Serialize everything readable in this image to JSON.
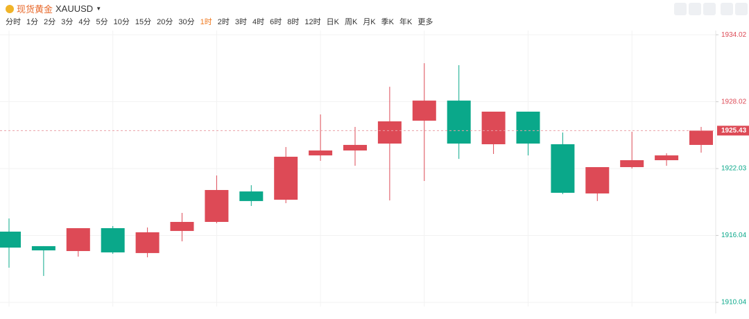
{
  "header": {
    "symbol_name": "现货黄金",
    "symbol_code": "XAUUSD",
    "intervals": [
      "分时",
      "1分",
      "2分",
      "3分",
      "4分",
      "5分",
      "10分",
      "15分",
      "20分",
      "30分",
      "1时",
      "2时",
      "3时",
      "4时",
      "6时",
      "8时",
      "12时",
      "日K",
      "周K",
      "月K",
      "季K",
      "年K",
      "更多"
    ],
    "active_interval": 10
  },
  "chart_data": {
    "type": "candlestick",
    "open": [
      1916.38,
      1915.08,
      1914.64,
      1916.69,
      1914.46,
      1916.44,
      1917.25,
      1919.98,
      1919.24,
      1923.21,
      1923.65,
      1924.27,
      1926.32,
      1928.12,
      1924.21,
      1927.13,
      1924.21,
      1919.8,
      1922.16,
      1922.78,
      1924.15
    ],
    "high": [
      1917.56,
      1915.08,
      1916.69,
      1916.88,
      1916.75,
      1918.06,
      1921.41,
      1920.54,
      1923.96,
      1926.88,
      1925.76,
      1929.36,
      1931.47,
      1931.29,
      1927.13,
      1927.13,
      1925.26,
      1922.16,
      1925.33,
      1923.4,
      1925.76
    ],
    "low": [
      1913.15,
      1912.41,
      1914.14,
      1914.39,
      1914.08,
      1915.51,
      1917.13,
      1918.68,
      1918.93,
      1922.72,
      1922.28,
      1919.18,
      1920.92,
      1922.9,
      1923.34,
      1923.21,
      1919.74,
      1919.12,
      1922.03,
      1922.28,
      1923.46
    ],
    "close": [
      1914.95,
      1914.7,
      1916.69,
      1914.52,
      1916.32,
      1917.25,
      1920.11,
      1919.12,
      1923.09,
      1923.65,
      1924.15,
      1926.26,
      1928.12,
      1924.27,
      1927.13,
      1924.27,
      1919.86,
      1922.16,
      1922.78,
      1923.21,
      1925.43
    ],
    "up_color": "#dd4a56",
    "down_color": "#0aa88a",
    "ylim": [
      1909.67,
      1934.4
    ],
    "yticks": [
      1910.04,
      1916.04,
      1922.03,
      1928.02,
      1934.02
    ],
    "grid": true,
    "last_price": 1925.43
  }
}
